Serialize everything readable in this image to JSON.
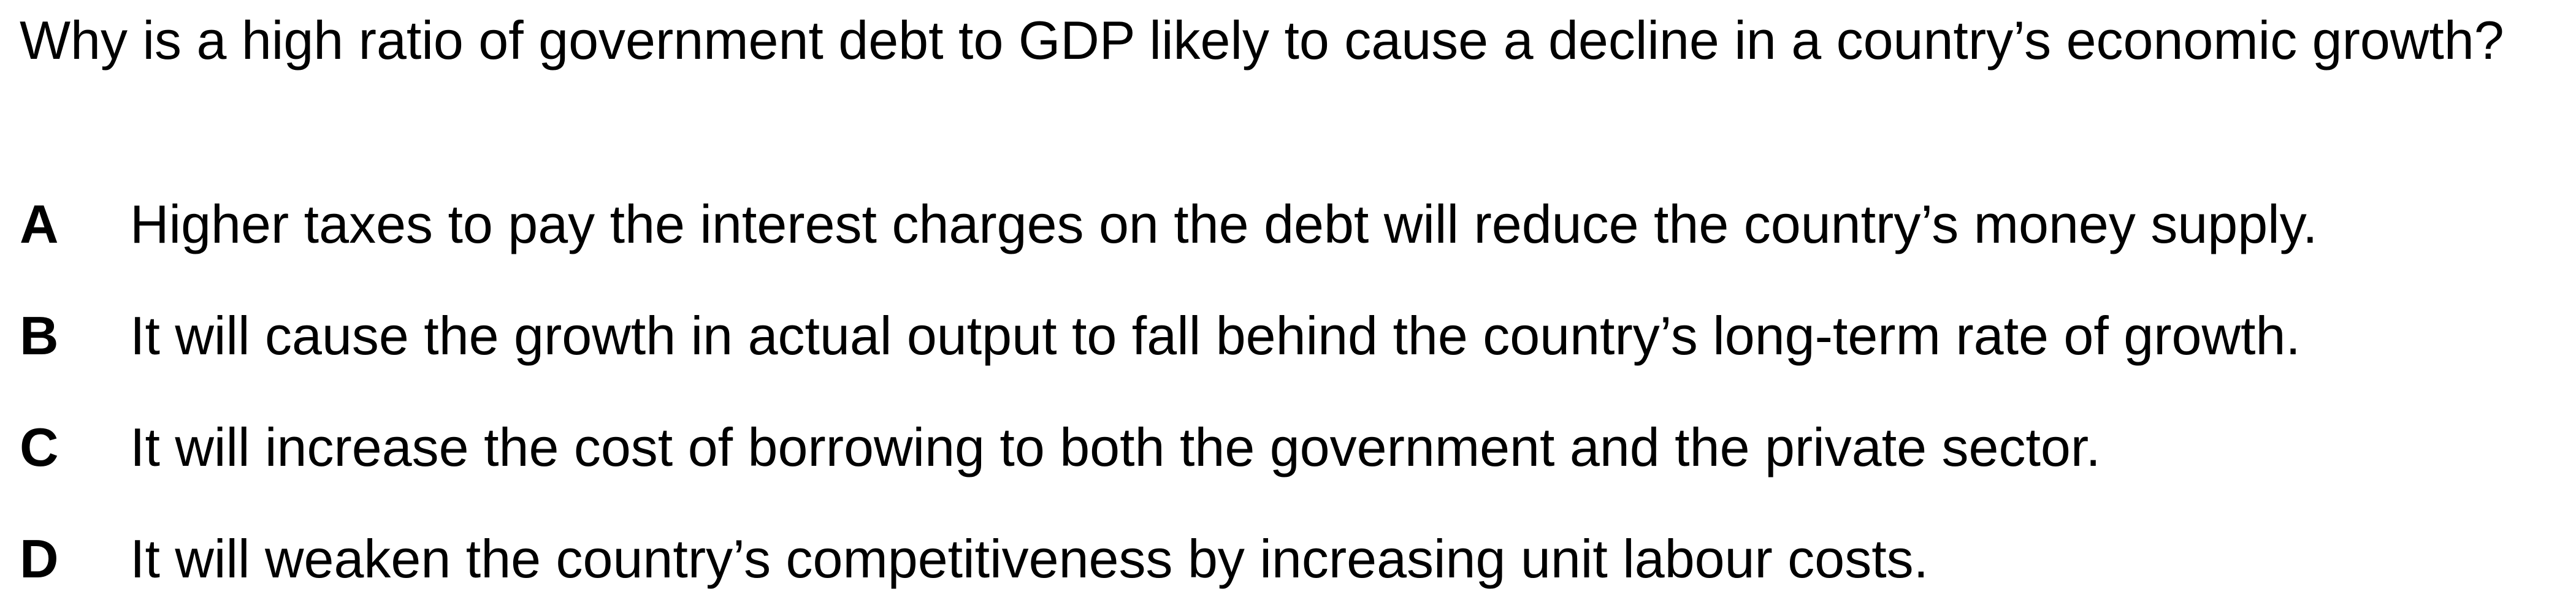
{
  "question": {
    "text": "Why is a high ratio of government debt to GDP likely to cause a decline in a country’s economic growth?"
  },
  "options": [
    {
      "letter": "A",
      "text": "Higher taxes to pay the interest charges on the debt will reduce the country’s money supply."
    },
    {
      "letter": "B",
      "text": "It will cause the growth in actual output to fall behind the country’s long-term rate of growth."
    },
    {
      "letter": "C",
      "text": "It will increase the cost of borrowing to both the government and the private sector."
    },
    {
      "letter": "D",
      "text": "It will weaken the country’s competitiveness by increasing unit labour costs."
    }
  ]
}
